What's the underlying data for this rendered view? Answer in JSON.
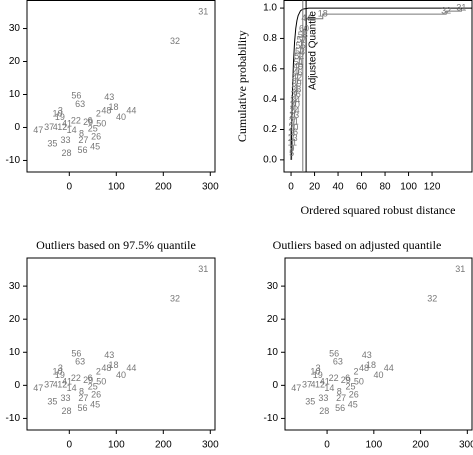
{
  "chart_data": [
    {
      "type": "scatter",
      "color": "#777777",
      "labels": [
        "31",
        "32",
        "44",
        "43",
        "18",
        "40",
        "48",
        "56",
        "63",
        "3",
        "47",
        "37",
        "4",
        "12",
        "35",
        "28",
        "56",
        "45",
        "26",
        "25",
        "50",
        "6",
        "27",
        "33",
        "19",
        "10",
        "41",
        "22",
        "8",
        "29",
        "14",
        "2"
      ],
      "x": [
        285,
        225,
        132,
        85,
        94,
        110,
        79,
        15,
        23,
        -19,
        -66,
        -43,
        -30,
        -15,
        -36,
        -6,
        28,
        55,
        57,
        50,
        68,
        44,
        30,
        -8,
        -20,
        -25,
        -5,
        14,
        26,
        40,
        5,
        62
      ],
      "y": [
        35,
        26,
        5,
        9,
        6,
        3,
        5,
        9.5,
        7,
        5,
        -1,
        0,
        0,
        0,
        -5,
        -8,
        -7,
        -6,
        -3,
        -0.5,
        1,
        2,
        -4,
        -4,
        3,
        4,
        1,
        2,
        -2,
        1.5,
        -1,
        4
      ],
      "xlim": [
        -90,
        310
      ],
      "ylim": [
        -13.5,
        38.5
      ],
      "xticks": [
        0,
        100,
        200,
        300
      ],
      "yticks": [
        -10,
        0,
        10,
        20,
        30
      ]
    },
    {
      "type": "ecdf",
      "color": "#777777",
      "curve_color": "#000000",
      "xlabel": "Ordered squared robust distance",
      "ylabel": "Cumulative probability",
      "labels": [
        "5",
        "9",
        "11",
        "13",
        "16",
        "20",
        "21",
        "23",
        "24",
        "30",
        "34",
        "36",
        "38",
        "39",
        "42",
        "46",
        "49",
        "51",
        "52",
        "53",
        "55",
        "57",
        "58",
        "60",
        "44",
        "18",
        "32",
        "31"
      ],
      "x": [
        0.5,
        0.8,
        1.1,
        1.4,
        1.7,
        2.0,
        2.3,
        2.6,
        3.0,
        3.3,
        3.6,
        4.0,
        4.4,
        4.8,
        5.2,
        5.6,
        6.0,
        6.5,
        7.0,
        7.6,
        8.2,
        9.0,
        10.0,
        11.0,
        13,
        27,
        132,
        145
      ],
      "y": [
        0.04,
        0.07,
        0.11,
        0.14,
        0.18,
        0.21,
        0.25,
        0.29,
        0.32,
        0.36,
        0.39,
        0.43,
        0.46,
        0.5,
        0.54,
        0.57,
        0.61,
        0.64,
        0.68,
        0.71,
        0.75,
        0.79,
        0.82,
        0.86,
        0.93,
        0.96,
        0.98,
        1.0
      ],
      "curve": {
        "x": [
          0,
          1,
          2,
          3,
          4,
          5,
          6,
          8,
          10,
          15,
          20,
          154
        ],
        "y": [
          0,
          0.393,
          0.632,
          0.777,
          0.865,
          0.918,
          0.95,
          0.982,
          0.993,
          0.9994,
          1,
          1
        ]
      },
      "quantile_lines": [
        {
          "x": 10
        },
        {
          "x": 12.8,
          "label": "Adjusted Quantile"
        }
      ],
      "xlim": [
        -6,
        154
      ],
      "ylim": [
        -0.08,
        1.05
      ],
      "xticks": [
        0,
        20,
        40,
        60,
        80,
        100,
        120
      ],
      "yticks": [
        {
          "value": 0,
          "label": "0.0"
        },
        {
          "value": 0.2,
          "label": "0.2"
        },
        {
          "value": 0.4,
          "label": "0.4"
        },
        {
          "value": 0.6,
          "label": "0.6"
        },
        {
          "value": 0.8,
          "label": "0.8"
        },
        {
          "value": 1,
          "label": "1.0"
        }
      ]
    },
    {
      "type": "scatter",
      "color": "#777777",
      "title": "Outliers based on 97.5% quantile",
      "labels": [
        "31",
        "32",
        "44",
        "43",
        "18",
        "40",
        "48",
        "56",
        "63",
        "3",
        "47",
        "37",
        "4",
        "12",
        "35",
        "28",
        "56",
        "45",
        "26",
        "25",
        "50",
        "6",
        "27",
        "33",
        "19",
        "10",
        "41",
        "22",
        "8",
        "29",
        "14",
        "2"
      ],
      "x": [
        285,
        225,
        132,
        85,
        94,
        110,
        79,
        15,
        23,
        -19,
        -66,
        -43,
        -30,
        -15,
        -36,
        -6,
        28,
        55,
        57,
        50,
        68,
        44,
        30,
        -8,
        -20,
        -25,
        -5,
        14,
        26,
        40,
        5,
        62
      ],
      "y": [
        35,
        26,
        5,
        9,
        6,
        3,
        5,
        9.5,
        7,
        5,
        -1,
        0,
        0,
        0,
        -5,
        -8,
        -7,
        -6,
        -3,
        -0.5,
        1,
        2,
        -4,
        -4,
        3,
        4,
        1,
        2,
        -2,
        1.5,
        -1,
        4
      ],
      "xlim": [
        -90,
        310
      ],
      "ylim": [
        -13.5,
        38.5
      ],
      "xticks": [
        0,
        100,
        200,
        300
      ],
      "yticks": [
        -10,
        0,
        10,
        20,
        30
      ]
    },
    {
      "type": "scatter",
      "color": "#777777",
      "title": "Outliers based on adjusted quantile",
      "labels": [
        "31",
        "32",
        "44",
        "43",
        "18",
        "40",
        "48",
        "56",
        "63",
        "3",
        "47",
        "37",
        "4",
        "12",
        "35",
        "28",
        "56",
        "45",
        "26",
        "25",
        "50",
        "6",
        "27",
        "33",
        "19",
        "10",
        "41",
        "22",
        "8",
        "29",
        "14",
        "2"
      ],
      "x": [
        285,
        225,
        132,
        85,
        94,
        110,
        79,
        15,
        23,
        -19,
        -66,
        -43,
        -30,
        -15,
        -36,
        -6,
        28,
        55,
        57,
        50,
        68,
        44,
        30,
        -8,
        -20,
        -25,
        -5,
        14,
        26,
        40,
        5,
        62
      ],
      "y": [
        35,
        26,
        5,
        9,
        6,
        3,
        5,
        9.5,
        7,
        5,
        -1,
        0,
        0,
        0,
        -5,
        -8,
        -7,
        -6,
        -3,
        -0.5,
        1,
        2,
        -4,
        -4,
        3,
        4,
        1,
        2,
        -2,
        1.5,
        -1,
        4
      ],
      "xlim": [
        -90,
        310
      ],
      "ylim": [
        -13.5,
        38.5
      ],
      "xticks": [
        0,
        100,
        200,
        300
      ],
      "yticks": [
        -10,
        0,
        10,
        20,
        30
      ]
    }
  ]
}
